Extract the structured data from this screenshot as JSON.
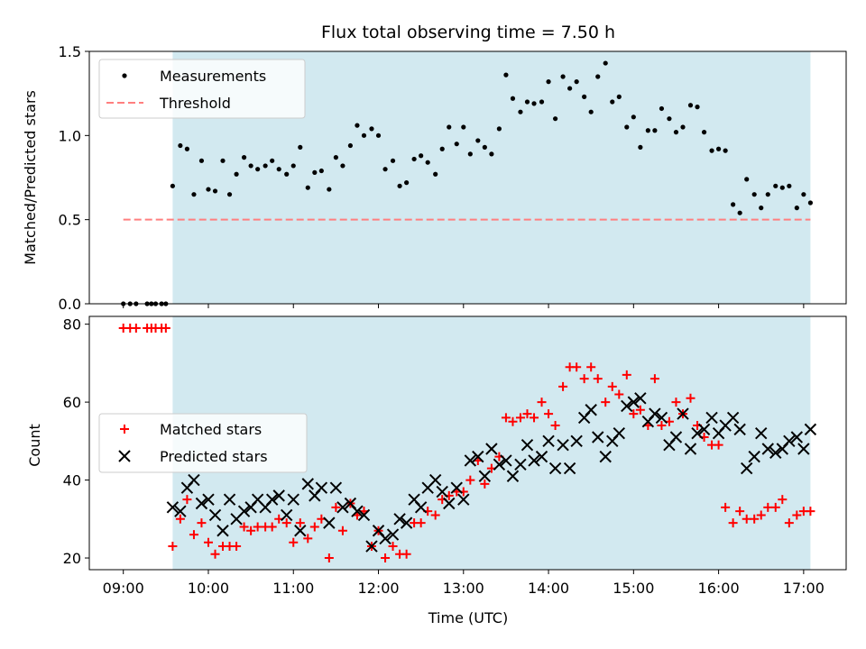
{
  "chart_data": [
    {
      "type": "scatter",
      "title": "Flux total observing time = 7.50 h",
      "ylabel": "Matched/Predicted stars",
      "xlabel": "",
      "xlim": [
        8.6,
        17.5
      ],
      "ylim": [
        0,
        1.5
      ],
      "yticks": [
        0,
        0.5,
        1.0,
        1.5
      ],
      "ytick_labels": [
        "0.0",
        "0.5",
        "1.0",
        "1.5"
      ],
      "shaded_region": [
        9.58,
        17.08
      ],
      "shade_color": "#d2e9f0",
      "series": [
        {
          "name": "Measurements",
          "marker": "dot",
          "color": "#000000",
          "x": [
            9.0,
            9.08,
            9.15,
            9.28,
            9.33,
            9.38,
            9.45,
            9.5,
            9.58,
            9.67,
            9.75,
            9.83,
            9.92,
            10.0,
            10.08,
            10.17,
            10.25,
            10.33,
            10.42,
            10.5,
            10.58,
            10.67,
            10.75,
            10.83,
            10.92,
            11.0,
            11.08,
            11.17,
            11.25,
            11.33,
            11.42,
            11.5,
            11.58,
            11.67,
            11.75,
            11.83,
            11.92,
            12.0,
            12.08,
            12.17,
            12.25,
            12.33,
            12.42,
            12.5,
            12.58,
            12.67,
            12.75,
            12.83,
            12.92,
            13.0,
            13.08,
            13.17,
            13.25,
            13.33,
            13.42,
            13.5,
            13.58,
            13.67,
            13.75,
            13.83,
            13.92,
            14.0,
            14.08,
            14.17,
            14.25,
            14.33,
            14.42,
            14.5,
            14.58,
            14.67,
            14.75,
            14.83,
            14.92,
            15.0,
            15.08,
            15.17,
            15.25,
            15.33,
            15.42,
            15.5,
            15.58,
            15.67,
            15.75,
            15.83,
            15.92,
            16.0,
            16.08,
            16.17,
            16.25,
            16.33,
            16.42,
            16.5,
            16.58,
            16.67,
            16.75,
            16.83,
            16.92,
            17.0,
            17.08
          ],
          "y": [
            0,
            0,
            0,
            0,
            0,
            0,
            0,
            0,
            0.7,
            0.94,
            0.92,
            0.65,
            0.85,
            0.68,
            0.67,
            0.85,
            0.65,
            0.77,
            0.87,
            0.82,
            0.8,
            0.82,
            0.85,
            0.8,
            0.77,
            0.82,
            0.93,
            0.69,
            0.78,
            0.79,
            0.68,
            0.87,
            0.82,
            0.94,
            1.06,
            1.0,
            1.04,
            1.0,
            0.8,
            0.85,
            0.7,
            0.72,
            0.86,
            0.88,
            0.84,
            0.77,
            0.92,
            1.05,
            0.95,
            1.05,
            0.89,
            0.97,
            0.93,
            0.89,
            1.04,
            1.36,
            1.22,
            1.14,
            1.2,
            1.19,
            1.2,
            1.32,
            1.1,
            1.35,
            1.28,
            1.32,
            1.23,
            1.14,
            1.35,
            1.43,
            1.2,
            1.23,
            1.05,
            1.11,
            0.93,
            1.03,
            1.03,
            1.16,
            1.1,
            1.02,
            1.05,
            1.18,
            1.17,
            1.02,
            0.91,
            0.92,
            0.91,
            0.59,
            0.54,
            0.74,
            0.65,
            0.57,
            0.65,
            0.7,
            0.69,
            0.7,
            0.57,
            0.65,
            0.6
          ]
        },
        {
          "name": "Threshold",
          "style": "dashed",
          "color": "#ff7f7f",
          "x": [
            9.0,
            17.08
          ],
          "y": [
            0.5,
            0.5
          ]
        }
      ],
      "legend": [
        "Measurements",
        "Threshold"
      ],
      "legend_position": "upper-left"
    },
    {
      "type": "scatter",
      "title": "",
      "xlabel": "Time (UTC)",
      "ylabel": "Count",
      "xlim": [
        8.6,
        17.5
      ],
      "ylim": [
        17,
        82
      ],
      "yticks": [
        20,
        40,
        60,
        80
      ],
      "ytick_labels": [
        "20",
        "40",
        "60",
        "80"
      ],
      "xticks": [
        9,
        10,
        11,
        12,
        13,
        14,
        15,
        16,
        17
      ],
      "xtick_labels": [
        "09:00",
        "10:00",
        "11:00",
        "12:00",
        "13:00",
        "14:00",
        "15:00",
        "16:00",
        "17:00"
      ],
      "shaded_region": [
        9.58,
        17.08
      ],
      "shade_color": "#d2e9f0",
      "series": [
        {
          "name": "Matched stars",
          "marker": "plus",
          "color": "#ff0000",
          "x": [
            9.0,
            9.08,
            9.15,
            9.28,
            9.33,
            9.38,
            9.45,
            9.5,
            9.58,
            9.67,
            9.75,
            9.83,
            9.92,
            10.0,
            10.08,
            10.17,
            10.25,
            10.33,
            10.42,
            10.5,
            10.58,
            10.67,
            10.75,
            10.83,
            10.92,
            11.0,
            11.08,
            11.17,
            11.25,
            11.33,
            11.42,
            11.5,
            11.58,
            11.67,
            11.75,
            11.83,
            11.92,
            12.0,
            12.08,
            12.17,
            12.25,
            12.33,
            12.42,
            12.5,
            12.58,
            12.67,
            12.75,
            12.83,
            12.92,
            13.0,
            13.08,
            13.17,
            13.25,
            13.33,
            13.42,
            13.5,
            13.58,
            13.67,
            13.75,
            13.83,
            13.92,
            14.0,
            14.08,
            14.17,
            14.25,
            14.33,
            14.42,
            14.5,
            14.58,
            14.67,
            14.75,
            14.83,
            14.92,
            15.0,
            15.08,
            15.17,
            15.25,
            15.33,
            15.42,
            15.5,
            15.58,
            15.67,
            15.75,
            15.83,
            15.92,
            16.0,
            16.08,
            16.17,
            16.25,
            16.33,
            16.42,
            16.5,
            16.58,
            16.67,
            16.75,
            16.83,
            16.92,
            17.0,
            17.08
          ],
          "y": [
            79,
            79,
            79,
            79,
            79,
            79,
            79,
            79,
            23,
            30,
            35,
            26,
            29,
            24,
            21,
            23,
            23,
            23,
            28,
            27,
            28,
            28,
            28,
            30,
            29,
            24,
            29,
            25,
            28,
            30,
            20,
            33,
            27,
            34,
            31,
            32,
            23,
            27,
            20,
            23,
            21,
            21,
            29,
            29,
            32,
            31,
            35,
            36,
            37,
            37,
            40,
            45,
            39,
            43,
            46,
            56,
            55,
            56,
            57,
            56,
            60,
            57,
            54,
            64,
            69,
            69,
            66,
            69,
            66,
            60,
            64,
            62,
            67,
            57,
            58,
            54,
            66,
            54,
            55,
            60,
            57,
            61,
            54,
            51,
            49,
            49,
            33,
            29,
            32,
            30,
            30,
            31,
            33,
            33,
            35,
            29,
            31,
            32,
            32
          ]
        },
        {
          "name": "Predicted stars",
          "marker": "x",
          "color": "#000000",
          "x": [
            9.58,
            9.67,
            9.75,
            9.83,
            9.92,
            10.0,
            10.08,
            10.17,
            10.25,
            10.33,
            10.42,
            10.5,
            10.58,
            10.67,
            10.75,
            10.83,
            10.92,
            11.0,
            11.08,
            11.17,
            11.25,
            11.33,
            11.42,
            11.5,
            11.58,
            11.67,
            11.75,
            11.83,
            11.92,
            12.0,
            12.08,
            12.17,
            12.25,
            12.33,
            12.42,
            12.5,
            12.58,
            12.67,
            12.75,
            12.83,
            12.92,
            13.0,
            13.08,
            13.17,
            13.25,
            13.33,
            13.42,
            13.5,
            13.58,
            13.67,
            13.75,
            13.83,
            13.92,
            14.0,
            14.08,
            14.17,
            14.25,
            14.33,
            14.42,
            14.5,
            14.58,
            14.67,
            14.75,
            14.83,
            14.92,
            15.0,
            15.08,
            15.17,
            15.25,
            15.33,
            15.42,
            15.5,
            15.58,
            15.67,
            15.75,
            15.83,
            15.92,
            16.0,
            16.08,
            16.17,
            16.25,
            16.33,
            16.42,
            16.5,
            16.58,
            16.67,
            16.75,
            16.83,
            16.92,
            17.0,
            17.08
          ],
          "y": [
            33,
            32,
            38,
            40,
            34,
            35,
            31,
            27,
            35,
            30,
            32,
            33,
            35,
            33,
            35,
            36,
            31,
            35,
            27,
            39,
            36,
            38,
            29,
            38,
            33,
            34,
            32,
            31,
            23,
            27,
            25,
            26,
            30,
            29,
            35,
            33,
            38,
            40,
            37,
            34,
            38,
            35,
            45,
            46,
            41,
            48,
            44,
            45,
            41,
            44,
            49,
            45,
            46,
            50,
            43,
            49,
            43,
            50,
            56,
            58,
            51,
            46,
            50,
            52,
            59,
            60,
            61,
            55,
            57,
            56,
            49,
            51,
            57,
            48,
            52,
            53,
            56,
            52,
            54,
            56,
            53,
            43,
            46,
            52,
            48,
            47,
            48,
            50,
            51,
            48,
            53
          ]
        }
      ],
      "legend": [
        "Matched stars",
        "Predicted stars"
      ],
      "legend_position": "center-left"
    }
  ]
}
